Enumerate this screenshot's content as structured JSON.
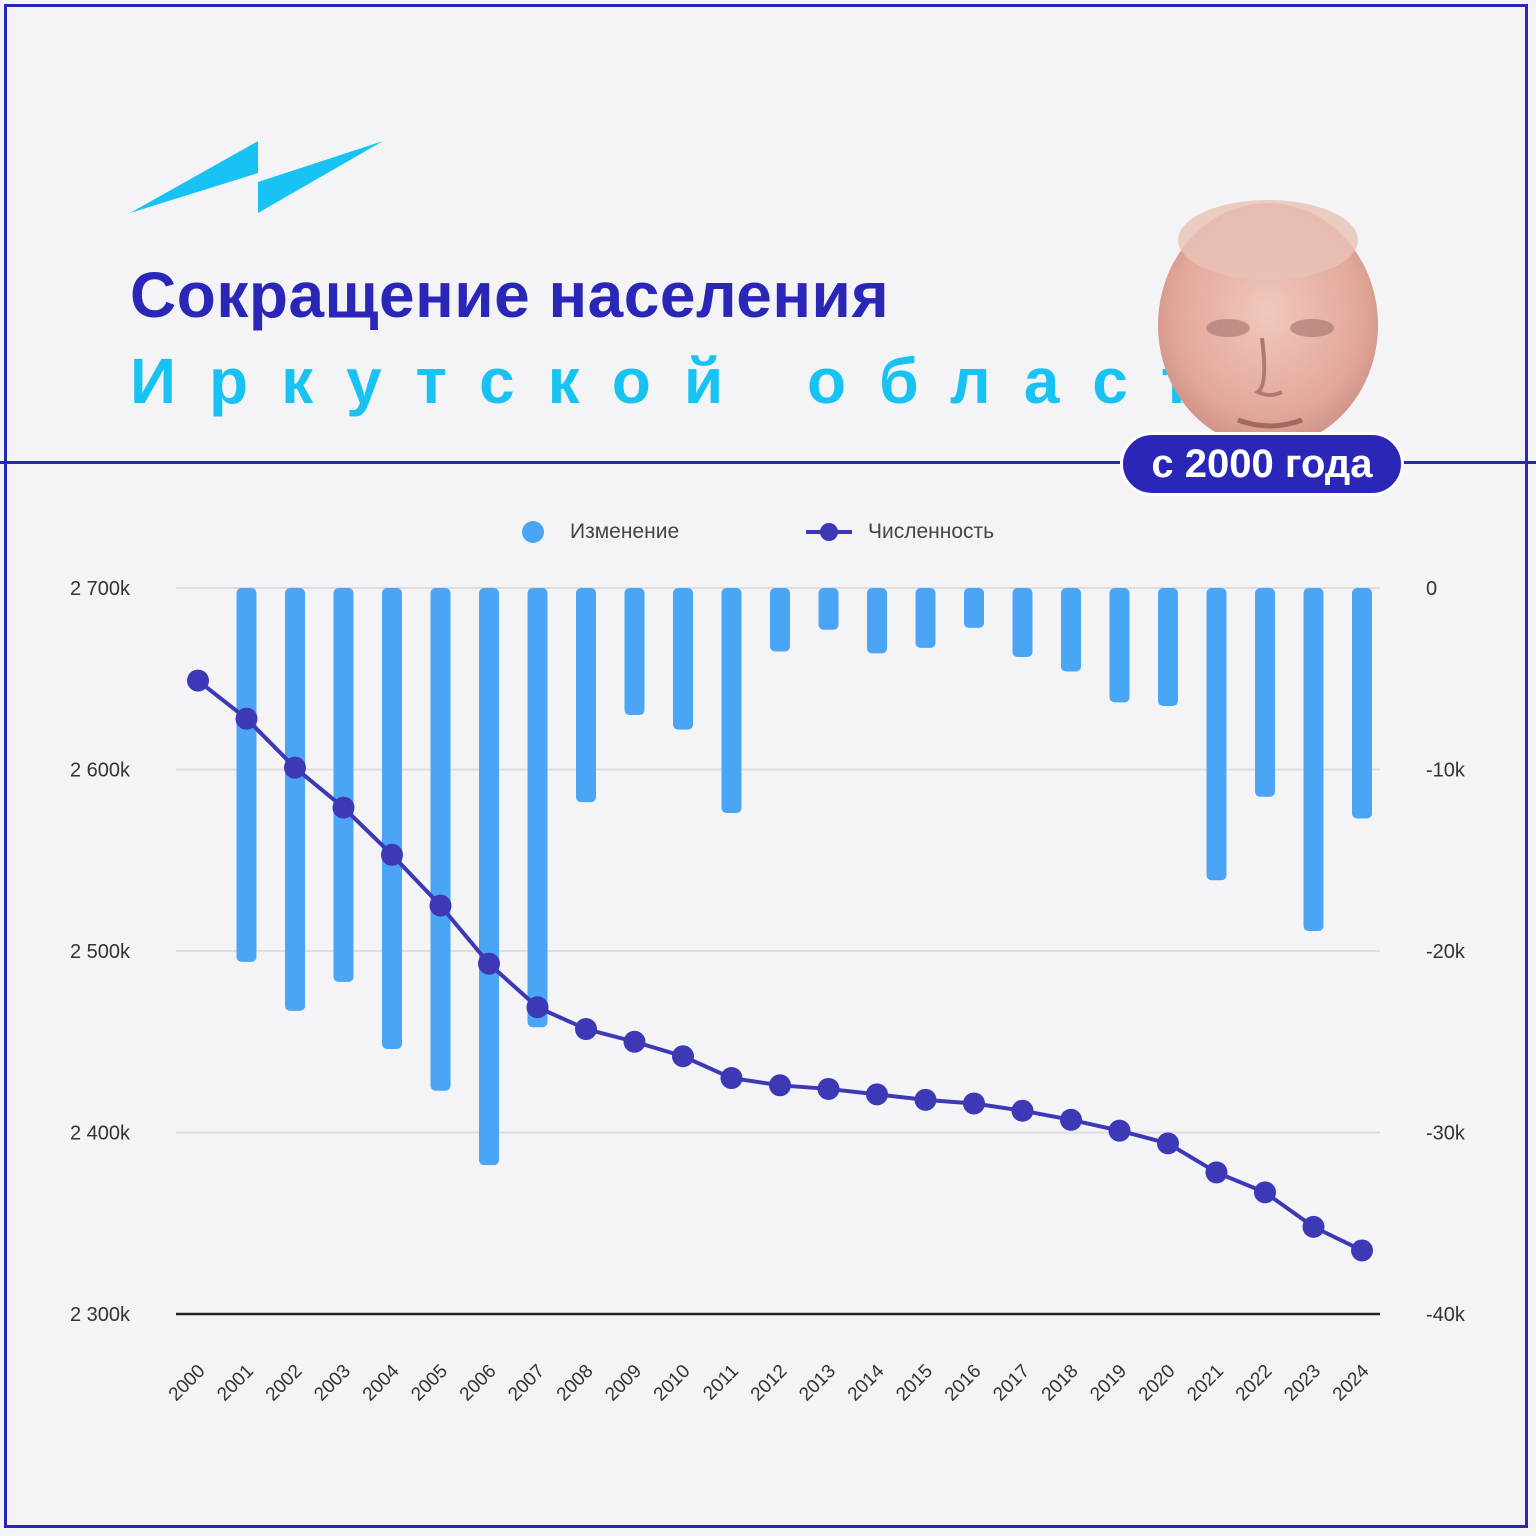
{
  "header": {
    "title_line1": "Сокращение населения",
    "title_line2": "Иркутской области",
    "badge": "с 2000 года",
    "logo_icon": "lightning-logo-icon",
    "colors": {
      "dark_blue": "#2a27b8",
      "cyan": "#18c3f3"
    }
  },
  "chart_data": {
    "type": "bar+line",
    "categories": [
      "2000",
      "2001",
      "2002",
      "2003",
      "2004",
      "2005",
      "2006",
      "2007",
      "2008",
      "2009",
      "2010",
      "2011",
      "2012",
      "2013",
      "2014",
      "2015",
      "2016",
      "2017",
      "2018",
      "2019",
      "2020",
      "2021",
      "2022",
      "2023",
      "2024"
    ],
    "series": [
      {
        "name": "Изменение",
        "type": "bar",
        "axis": "right",
        "color": "#4aa6f5",
        "values": [
          0,
          -20.6,
          -23.3,
          -21.7,
          -25.4,
          -27.7,
          -31.8,
          -24.2,
          -11.8,
          -7.0,
          -7.8,
          -12.4,
          -3.5,
          -2.3,
          -3.6,
          -3.3,
          -2.2,
          -3.8,
          -4.6,
          -6.3,
          -6.5,
          -16.1,
          -11.5,
          -18.9,
          -12.7
        ]
      },
      {
        "name": "Численность",
        "type": "line",
        "axis": "left",
        "color": "#3d38b5",
        "values": [
          2649,
          2628,
          2601,
          2579,
          2553,
          2525,
          2493,
          2469,
          2457,
          2450,
          2442,
          2430,
          2426,
          2424,
          2421,
          2418,
          2416,
          2412,
          2407,
          2401,
          2394,
          2378,
          2367,
          2348,
          2335
        ]
      }
    ],
    "y_left": {
      "ticks": [
        "2 700k",
        "2 600k",
        "2 500k",
        "2 400k",
        "2 300k"
      ],
      "range": [
        2300,
        2700
      ]
    },
    "y_right": {
      "ticks": [
        "0",
        "-10k",
        "-20k",
        "-30k",
        "-40k"
      ],
      "range": [
        -40,
        0
      ]
    },
    "legend": [
      "Изменение",
      "Численность"
    ],
    "legend_position": "top-center",
    "grid": true
  }
}
